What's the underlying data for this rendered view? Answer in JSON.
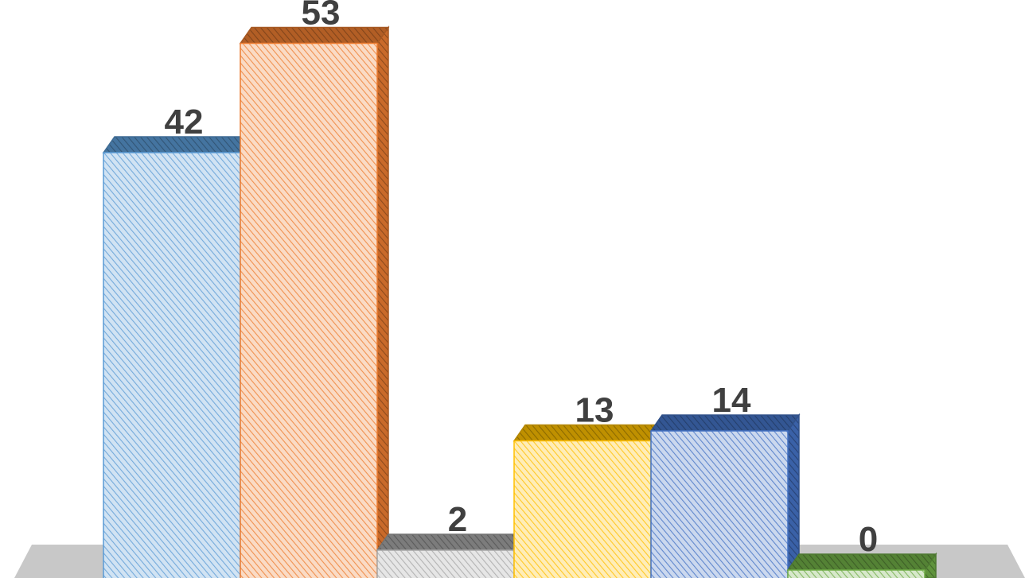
{
  "chart_data": {
    "type": "bar",
    "style": "3d-clustered-column",
    "categories": [
      "",
      "",
      "",
      "",
      "",
      ""
    ],
    "values": [
      42,
      53,
      2,
      13,
      14,
      0
    ],
    "data_labels": [
      "42",
      "53",
      "2",
      "13",
      "14",
      "0"
    ],
    "colors": [
      "#5B9BD5",
      "#ED7D31",
      "#A5A5A5",
      "#FFC000",
      "#4472C4",
      "#70AD47"
    ],
    "fill_pattern": "diagonal-hatch",
    "grid": false,
    "legend": "none",
    "title": "",
    "xlabel": "",
    "ylabel": "",
    "ylim": [
      0,
      60
    ]
  }
}
